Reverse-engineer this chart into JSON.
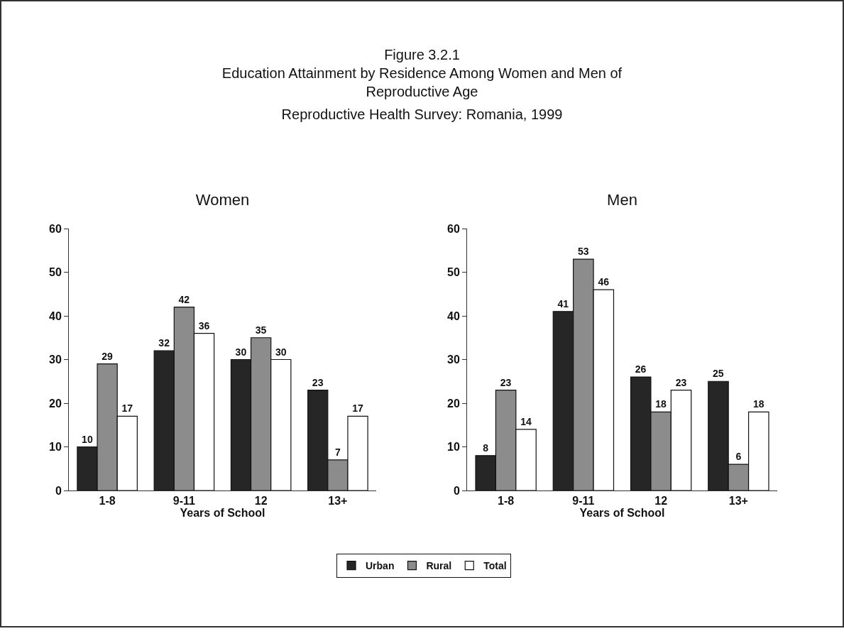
{
  "chart_data": [
    {
      "type": "other",
      "title": "Figure 3.2.1",
      "subtitle": "Education Attainment by Residence Among Women and Men of Reproductive Age",
      "annotations": [
        "Reproductive Health Survey: Romania, 1999"
      ]
    },
    {
      "type": "bar",
      "title": "Women",
      "xlabel": "Years of School",
      "categories": [
        "1-8",
        "9-11",
        "12",
        "13+"
      ],
      "series": [
        {
          "name": "Urban",
          "color": "#262626",
          "values": [
            10,
            32,
            30,
            23
          ]
        },
        {
          "name": "Rural",
          "color": "#8c8c8c",
          "values": [
            29,
            42,
            35,
            7
          ]
        },
        {
          "name": "Total",
          "color": "#ffffff",
          "values": [
            17,
            36,
            30,
            17
          ]
        }
      ],
      "ylim": [
        0,
        60
      ],
      "yticks": [
        0,
        10,
        20,
        30,
        40,
        50,
        60
      ],
      "grid": false,
      "data_labels": true,
      "legend": "bottom"
    },
    {
      "type": "bar",
      "title": "Men",
      "xlabel": "Years of School",
      "categories": [
        "1-8",
        "9-11",
        "12",
        "13+"
      ],
      "series": [
        {
          "color": "#262626",
          "values": [
            8,
            41,
            26,
            25
          ]
        },
        {
          "color": "#8c8c8c",
          "values": [
            23,
            53,
            18,
            6
          ]
        },
        {
          "color": "#ffffff",
          "values": [
            14,
            46,
            23,
            18
          ]
        }
      ],
      "ylim": [
        0,
        60
      ],
      "yticks": [
        0,
        10,
        20,
        30,
        40,
        50,
        60
      ],
      "grid": false,
      "data_labels": true,
      "legend": false
    }
  ]
}
